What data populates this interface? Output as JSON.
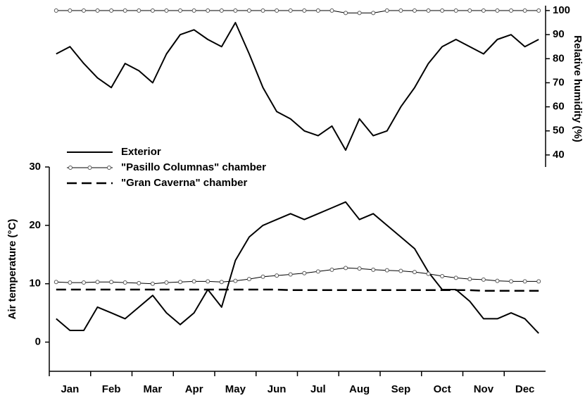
{
  "chart_data": [
    {
      "type": "line",
      "y_label": "Air temperature (°C)",
      "categories": [
        null,
        "Jan",
        null,
        null,
        "Feb",
        null,
        null,
        "Mar",
        null,
        null,
        "Apr",
        null,
        null,
        "May",
        null,
        null,
        "Jun",
        null,
        null,
        "Jul",
        null,
        null,
        "Aug",
        null,
        null,
        "Sep",
        null,
        null,
        "Oct",
        null,
        null,
        "Nov",
        null,
        null,
        "Dec",
        null
      ],
      "ylim": [
        -5,
        30
      ],
      "yticks": [
        0,
        10,
        20,
        30
      ],
      "legend": "upper left",
      "series": [
        {
          "name": "Exterior",
          "color": "#000000",
          "dash": false,
          "marker": false,
          "width": 2,
          "values": [
            4,
            2,
            2,
            6,
            5,
            4,
            6,
            8,
            5,
            3,
            5,
            9,
            6,
            14,
            18,
            20,
            21,
            22,
            21,
            22,
            23,
            24,
            21,
            22,
            20,
            18,
            16,
            12,
            9,
            9,
            7,
            4,
            4,
            5,
            4,
            1.5
          ]
        },
        {
          "name": "\"Pasillo Columnas\" chamber",
          "color": "#000000",
          "dash": false,
          "marker": true,
          "width": 1,
          "values": [
            10.3,
            10.2,
            10.2,
            10.3,
            10.3,
            10.2,
            10.1,
            10.0,
            10.2,
            10.3,
            10.4,
            10.4,
            10.3,
            10.5,
            10.8,
            11.2,
            11.4,
            11.6,
            11.8,
            12.1,
            12.4,
            12.7,
            12.6,
            12.4,
            12.3,
            12.2,
            12.0,
            11.7,
            11.3,
            11.0,
            10.8,
            10.7,
            10.5,
            10.4,
            10.4,
            10.4
          ]
        },
        {
          "name": "\"Gran Caverna\" chamber",
          "color": "#000000",
          "dash": true,
          "marker": false,
          "width": 2.5,
          "values": [
            9.0,
            9.0,
            9.0,
            9.0,
            9.0,
            9.0,
            9.0,
            9.0,
            9.0,
            9.0,
            9.0,
            9.0,
            9.0,
            9.0,
            9.0,
            9.0,
            9.0,
            8.9,
            8.9,
            8.9,
            8.9,
            8.9,
            8.9,
            8.9,
            8.9,
            8.9,
            8.9,
            8.9,
            8.9,
            8.9,
            8.9,
            8.8,
            8.8,
            8.8,
            8.8,
            8.8
          ]
        }
      ]
    },
    {
      "type": "line",
      "y2_label": "Relative humidity (%)",
      "y2lim": [
        35,
        100
      ],
      "y2ticks": [
        40,
        50,
        60,
        70,
        80,
        90,
        100
      ],
      "series": [
        {
          "color": "#000000",
          "dash": false,
          "marker": false,
          "width": 2,
          "axis": "y2",
          "values": [
            82,
            85,
            78,
            72,
            68,
            78,
            75,
            70,
            82,
            90,
            92,
            88,
            85,
            95,
            82,
            68,
            58,
            55,
            50,
            48,
            52,
            42,
            55,
            48,
            50,
            60,
            68,
            78,
            85,
            88,
            85,
            82,
            88,
            90,
            85,
            88
          ]
        },
        {
          "color": "#000000",
          "dash": false,
          "marker": true,
          "width": 1,
          "axis": "y2",
          "values": [
            100,
            100,
            100,
            100,
            100,
            100,
            100,
            100,
            100,
            100,
            100,
            100,
            100,
            100,
            100,
            100,
            100,
            100,
            100,
            100,
            100,
            99,
            99,
            99,
            100,
            100,
            100,
            100,
            100,
            100,
            100,
            100,
            100,
            100,
            100,
            100
          ]
        }
      ]
    }
  ]
}
